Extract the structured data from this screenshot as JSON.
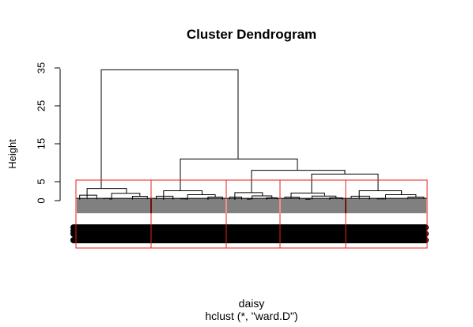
{
  "chart_data": {
    "type": "dendrogram",
    "title": "Cluster Dendrogram",
    "ylabel": "Height",
    "xlabel": "daisy",
    "sub": "hclust (*, \"ward.D\")",
    "ylim": [
      0,
      35
    ],
    "yticks": [
      0,
      5,
      15,
      25,
      35
    ],
    "n_clusters_highlighted": 5,
    "highlight_color": "#e8201c",
    "merges": [
      {
        "name": "root",
        "height": 34.5
      },
      {
        "name": "right-main",
        "height": 11
      },
      {
        "name": "right-sub",
        "height": 8
      },
      {
        "name": "right-pair",
        "height": 7
      },
      {
        "name": "cluster-1",
        "height": 3.2
      },
      {
        "name": "cluster-2",
        "height": 2.6
      },
      {
        "name": "cluster-3",
        "height": 2.1
      },
      {
        "name": "cluster-4",
        "height": 2.0
      },
      {
        "name": "cluster-5",
        "height": 2.6
      }
    ]
  }
}
